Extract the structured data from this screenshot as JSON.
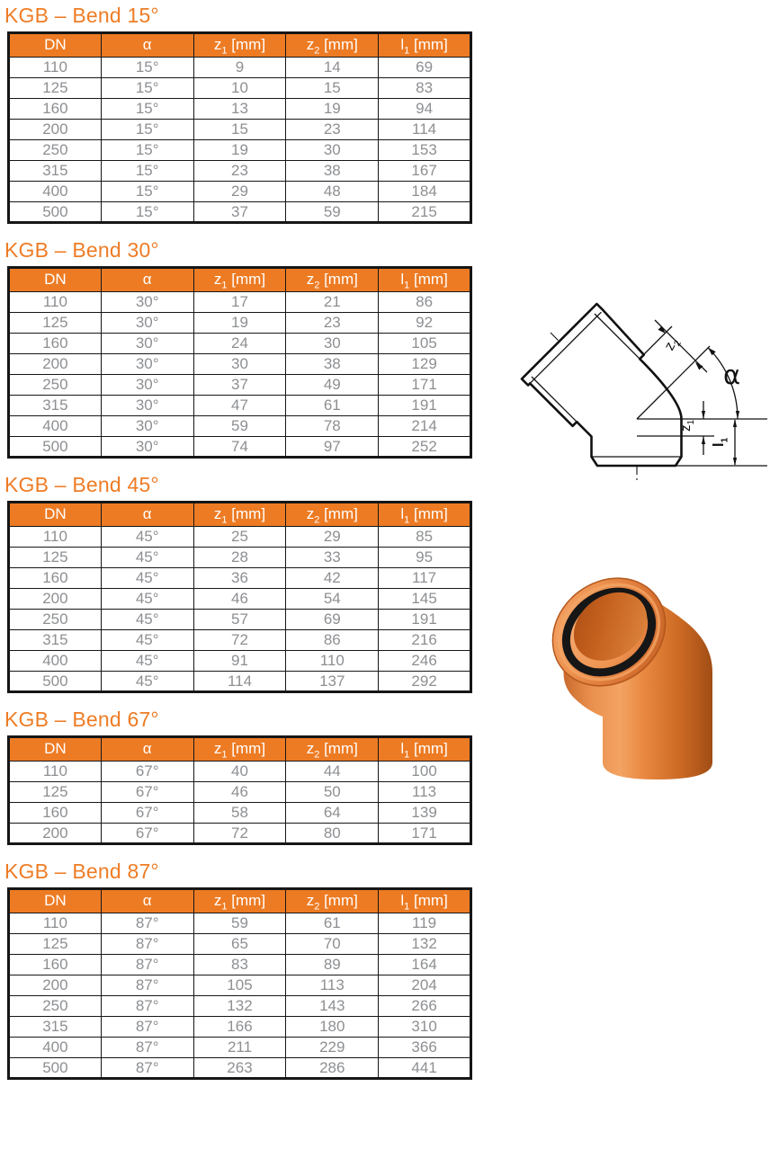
{
  "colors": {
    "accent_title": "#EE7C25",
    "table_header_bg": "#ED7B23",
    "table_header_text": "#FFFFFF",
    "cell_text": "#8D8F92",
    "table_border": "#161616",
    "product_orange_light": "#F3A363",
    "product_orange_mid": "#E8873F",
    "product_orange_dark": "#A14D15",
    "seal_ring_black": "#161616"
  },
  "table_columns": [
    {
      "base": "DN",
      "sub": "",
      "unit": ""
    },
    {
      "base": "α",
      "sub": "",
      "unit": ""
    },
    {
      "base": "z",
      "sub": "1",
      "unit": " [mm]"
    },
    {
      "base": "z",
      "sub": "2",
      "unit": " [mm]"
    },
    {
      "base": "l",
      "sub": "1",
      "unit": " [mm]"
    }
  ],
  "sections": [
    {
      "title": "KGB – Bend 15°",
      "rows": [
        [
          "110",
          "15°",
          "9",
          "14",
          "69"
        ],
        [
          "125",
          "15°",
          "10",
          "15",
          "83"
        ],
        [
          "160",
          "15°",
          "13",
          "19",
          "94"
        ],
        [
          "200",
          "15°",
          "15",
          "23",
          "114"
        ],
        [
          "250",
          "15°",
          "19",
          "30",
          "153"
        ],
        [
          "315",
          "15°",
          "23",
          "38",
          "167"
        ],
        [
          "400",
          "15°",
          "29",
          "48",
          "184"
        ],
        [
          "500",
          "15°",
          "37",
          "59",
          "215"
        ]
      ]
    },
    {
      "title": "KGB – Bend 30°",
      "rows": [
        [
          "110",
          "30°",
          "17",
          "21",
          "86"
        ],
        [
          "125",
          "30°",
          "19",
          "23",
          "92"
        ],
        [
          "160",
          "30°",
          "24",
          "30",
          "105"
        ],
        [
          "200",
          "30°",
          "30",
          "38",
          "129"
        ],
        [
          "250",
          "30°",
          "37",
          "49",
          "171"
        ],
        [
          "315",
          "30°",
          "47",
          "61",
          "191"
        ],
        [
          "400",
          "30°",
          "59",
          "78",
          "214"
        ],
        [
          "500",
          "30°",
          "74",
          "97",
          "252"
        ]
      ]
    },
    {
      "title": "KGB – Bend 45°",
      "rows": [
        [
          "110",
          "45°",
          "25",
          "29",
          "85"
        ],
        [
          "125",
          "45°",
          "28",
          "33",
          "95"
        ],
        [
          "160",
          "45°",
          "36",
          "42",
          "117"
        ],
        [
          "200",
          "45°",
          "46",
          "54",
          "145"
        ],
        [
          "250",
          "45°",
          "57",
          "69",
          "191"
        ],
        [
          "315",
          "45°",
          "72",
          "86",
          "216"
        ],
        [
          "400",
          "45°",
          "91",
          "110",
          "246"
        ],
        [
          "500",
          "45°",
          "114",
          "137",
          "292"
        ]
      ]
    },
    {
      "title": "KGB – Bend 67°",
      "rows": [
        [
          "110",
          "67°",
          "40",
          "44",
          "100"
        ],
        [
          "125",
          "67°",
          "46",
          "50",
          "113"
        ],
        [
          "160",
          "67°",
          "58",
          "64",
          "139"
        ],
        [
          "200",
          "67°",
          "72",
          "80",
          "171"
        ]
      ]
    },
    {
      "title": "KGB – Bend 87°",
      "rows": [
        [
          "110",
          "87°",
          "59",
          "61",
          "119"
        ],
        [
          "125",
          "87°",
          "65",
          "70",
          "132"
        ],
        [
          "160",
          "87°",
          "83",
          "89",
          "164"
        ],
        [
          "200",
          "87°",
          "105",
          "113",
          "204"
        ],
        [
          "250",
          "87°",
          "132",
          "143",
          "266"
        ],
        [
          "315",
          "87°",
          "166",
          "180",
          "310"
        ],
        [
          "400",
          "87°",
          "211",
          "229",
          "366"
        ],
        [
          "500",
          "87°",
          "263",
          "286",
          "441"
        ]
      ]
    }
  ],
  "diagram": {
    "labels": {
      "z2_base": "z",
      "z2_sub": "2",
      "alpha": "α",
      "z1_base": "z",
      "z1_sub": "1",
      "l1_base": "l",
      "l1_sub": "1"
    }
  }
}
